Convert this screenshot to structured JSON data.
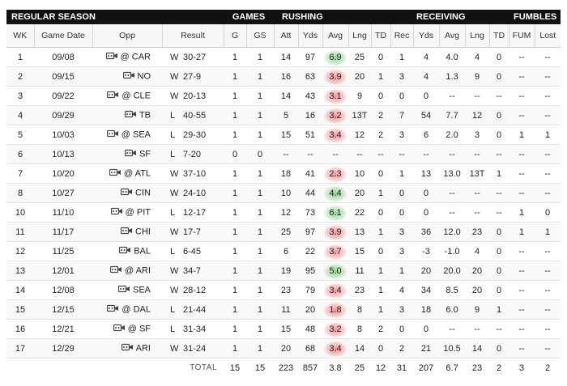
{
  "groups": {
    "season": "REGULAR SEASON",
    "games": "GAMES",
    "rushing": "RUSHING",
    "receiving": "RECEIVING",
    "fumbles": "FUMBLES"
  },
  "columns": {
    "wk": "WK",
    "date": "Game Date",
    "opp": "Opp",
    "result": "Result",
    "g": "G",
    "gs": "GS",
    "att": "Att",
    "yds": "Yds",
    "avg": "Avg",
    "lng": "Lng",
    "td": "TD",
    "rec": "Rec",
    "ryds": "Yds",
    "ravg": "Avg",
    "rlng": "Lng",
    "rtd": "TD",
    "fum": "FUM",
    "lost": "Lost"
  },
  "colors": {
    "good": "#5abe5a",
    "bad": "#eb505a",
    "header_bg": "#111111"
  },
  "rows": [
    {
      "wk": "1",
      "date": "09/08",
      "opp": "@ CAR",
      "wl": "W",
      "score": "30-27",
      "g": "1",
      "gs": "1",
      "att": "14",
      "yds": "97",
      "avg": "6.9",
      "avg_mark": "good",
      "lng": "25",
      "td": "0",
      "rec": "1",
      "ryds": "4",
      "ravg": "4.0",
      "rlng": "4",
      "rtd": "0",
      "fum": "--",
      "lost": "--"
    },
    {
      "wk": "2",
      "date": "09/15",
      "opp": "NO",
      "wl": "W",
      "score": "27-9",
      "g": "1",
      "gs": "1",
      "att": "16",
      "yds": "63",
      "avg": "3.9",
      "avg_mark": "bad",
      "lng": "20",
      "td": "1",
      "rec": "3",
      "ryds": "4",
      "ravg": "1.3",
      "rlng": "9",
      "rtd": "0",
      "fum": "--",
      "lost": "--"
    },
    {
      "wk": "3",
      "date": "09/22",
      "opp": "@ CLE",
      "wl": "W",
      "score": "20-13",
      "g": "1",
      "gs": "1",
      "att": "14",
      "yds": "43",
      "avg": "3.1",
      "avg_mark": "bad",
      "lng": "9",
      "td": "0",
      "rec": "0",
      "ryds": "0",
      "ravg": "--",
      "rlng": "--",
      "rtd": "--",
      "fum": "--",
      "lost": "--"
    },
    {
      "wk": "4",
      "date": "09/29",
      "opp": "TB",
      "wl": "L",
      "score": "40-55",
      "g": "1",
      "gs": "1",
      "att": "5",
      "yds": "16",
      "avg": "3.2",
      "avg_mark": "bad",
      "lng": "13T",
      "td": "2",
      "rec": "7",
      "ryds": "54",
      "ravg": "7.7",
      "rlng": "12",
      "rtd": "0",
      "fum": "--",
      "lost": "--"
    },
    {
      "wk": "5",
      "date": "10/03",
      "opp": "@ SEA",
      "wl": "L",
      "score": "29-30",
      "g": "1",
      "gs": "1",
      "att": "15",
      "yds": "51",
      "avg": "3.4",
      "avg_mark": "bad",
      "lng": "12",
      "td": "2",
      "rec": "3",
      "ryds": "6",
      "ravg": "2.0",
      "rlng": "3",
      "rtd": "0",
      "fum": "1",
      "lost": "1"
    },
    {
      "wk": "6",
      "date": "10/13",
      "opp": "SF",
      "wl": "L",
      "score": "7-20",
      "g": "0",
      "gs": "0",
      "att": "--",
      "yds": "--",
      "avg": "--",
      "avg_mark": "",
      "lng": "--",
      "td": "--",
      "rec": "--",
      "ryds": "--",
      "ravg": "--",
      "rlng": "--",
      "rtd": "--",
      "fum": "--",
      "lost": "--"
    },
    {
      "wk": "7",
      "date": "10/20",
      "opp": "@ ATL",
      "wl": "W",
      "score": "37-10",
      "g": "1",
      "gs": "1",
      "att": "18",
      "yds": "41",
      "avg": "2.3",
      "avg_mark": "bad",
      "lng": "10",
      "td": "0",
      "rec": "1",
      "ryds": "13",
      "ravg": "13.0",
      "rlng": "13T",
      "rtd": "1",
      "fum": "--",
      "lost": "--"
    },
    {
      "wk": "8",
      "date": "10/27",
      "opp": "CIN",
      "wl": "W",
      "score": "24-10",
      "g": "1",
      "gs": "1",
      "att": "10",
      "yds": "44",
      "avg": "4.4",
      "avg_mark": "good",
      "lng": "20",
      "td": "1",
      "rec": "0",
      "ryds": "0",
      "ravg": "--",
      "rlng": "--",
      "rtd": "--",
      "fum": "--",
      "lost": "--"
    },
    {
      "wk": "10",
      "date": "11/10",
      "opp": "@ PIT",
      "wl": "L",
      "score": "12-17",
      "g": "1",
      "gs": "1",
      "att": "12",
      "yds": "73",
      "avg": "6.1",
      "avg_mark": "good",
      "lng": "22",
      "td": "0",
      "rec": "0",
      "ryds": "0",
      "ravg": "--",
      "rlng": "--",
      "rtd": "--",
      "fum": "1",
      "lost": "0"
    },
    {
      "wk": "11",
      "date": "11/17",
      "opp": "CHI",
      "wl": "W",
      "score": "17-7",
      "g": "1",
      "gs": "1",
      "att": "25",
      "yds": "97",
      "avg": "3.9",
      "avg_mark": "bad",
      "lng": "13",
      "td": "1",
      "rec": "3",
      "ryds": "36",
      "ravg": "12.0",
      "rlng": "23",
      "rtd": "0",
      "fum": "1",
      "lost": "1"
    },
    {
      "wk": "12",
      "date": "11/25",
      "opp": "BAL",
      "wl": "L",
      "score": "6-45",
      "g": "1",
      "gs": "1",
      "att": "6",
      "yds": "22",
      "avg": "3.7",
      "avg_mark": "bad",
      "lng": "15",
      "td": "0",
      "rec": "3",
      "ryds": "-3",
      "ravg": "-1.0",
      "rlng": "4",
      "rtd": "0",
      "fum": "--",
      "lost": "--"
    },
    {
      "wk": "13",
      "date": "12/01",
      "opp": "@ ARI",
      "wl": "W",
      "score": "34-7",
      "g": "1",
      "gs": "1",
      "att": "19",
      "yds": "95",
      "avg": "5.0",
      "avg_mark": "good",
      "lng": "11",
      "td": "1",
      "rec": "1",
      "ryds": "20",
      "ravg": "20.0",
      "rlng": "20",
      "rtd": "0",
      "fum": "--",
      "lost": "--"
    },
    {
      "wk": "14",
      "date": "12/08",
      "opp": "SEA",
      "wl": "W",
      "score": "28-12",
      "g": "1",
      "gs": "1",
      "att": "23",
      "yds": "79",
      "avg": "3.4",
      "avg_mark": "bad",
      "lng": "23",
      "td": "1",
      "rec": "4",
      "ryds": "34",
      "ravg": "8.5",
      "rlng": "20",
      "rtd": "0",
      "fum": "--",
      "lost": "--"
    },
    {
      "wk": "15",
      "date": "12/15",
      "opp": "@ DAL",
      "wl": "L",
      "score": "21-44",
      "g": "1",
      "gs": "1",
      "att": "11",
      "yds": "20",
      "avg": "1.8",
      "avg_mark": "bad",
      "lng": "8",
      "td": "1",
      "rec": "3",
      "ryds": "18",
      "ravg": "6.0",
      "rlng": "9",
      "rtd": "1",
      "fum": "--",
      "lost": "--"
    },
    {
      "wk": "16",
      "date": "12/21",
      "opp": "@ SF",
      "wl": "L",
      "score": "31-34",
      "g": "1",
      "gs": "1",
      "att": "15",
      "yds": "48",
      "avg": "3.2",
      "avg_mark": "bad",
      "lng": "8",
      "td": "2",
      "rec": "0",
      "ryds": "0",
      "ravg": "--",
      "rlng": "--",
      "rtd": "--",
      "fum": "--",
      "lost": "--"
    },
    {
      "wk": "17",
      "date": "12/29",
      "opp": "ARI",
      "wl": "W",
      "score": "31-24",
      "g": "1",
      "gs": "1",
      "att": "20",
      "yds": "68",
      "avg": "3.4",
      "avg_mark": "bad",
      "lng": "14",
      "td": "0",
      "rec": "2",
      "ryds": "21",
      "ravg": "10.5",
      "rlng": "14",
      "rtd": "0",
      "fum": "--",
      "lost": "--"
    }
  ],
  "totals": {
    "label": "TOTAL",
    "g": "15",
    "gs": "15",
    "att": "223",
    "yds": "857",
    "avg": "3.8",
    "lng": "25",
    "td": "12",
    "rec": "31",
    "ryds": "207",
    "ravg": "6.7",
    "rlng": "23",
    "rtd": "2",
    "fum": "3",
    "lost": "2"
  }
}
